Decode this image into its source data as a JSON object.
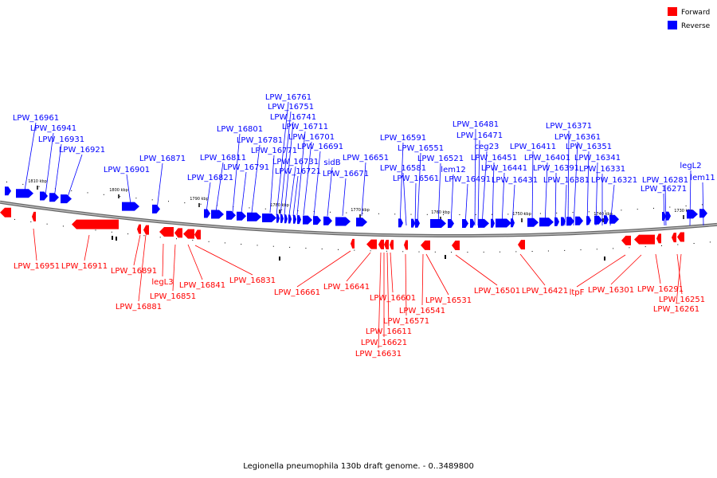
{
  "caption": "Legionella pneumophila 130b draft genome. - 0..3489800",
  "legend": [
    {
      "label": "Forward",
      "color": "#ff0000"
    },
    {
      "label": "Reverse",
      "color": "#0000ff"
    }
  ],
  "colors": {
    "forward": "#ff0000",
    "reverse": "#0000ff",
    "backbone": "#999999"
  },
  "ticks": [
    {
      "label": "1810 kbp"
    },
    {
      "label": "1800 kbp"
    },
    {
      "label": "1790 kbp"
    },
    {
      "label": "1780 kbp"
    },
    {
      "label": "1770 kbp"
    },
    {
      "label": "1760 kbp"
    },
    {
      "label": "1750 kbp"
    },
    {
      "label": "1740 kbp"
    },
    {
      "label": "1730 kbp"
    }
  ],
  "reverse_genes": [
    "LPW_16961",
    "LPW_16941",
    "LPW_16931",
    "LPW_16921",
    "LPW_16901",
    "LPW_16871",
    "LPW_16821",
    "LPW_16811",
    "LPW_16801",
    "LPW_16791",
    "LPW_16781",
    "LPW_16771",
    "LPW_16761",
    "LPW_16751",
    "LPW_16741",
    "LPW_16731",
    "LPW_16721",
    "LPW_16711",
    "LPW_16701",
    "LPW_16691",
    "sidB",
    "LPW_16671",
    "LPW_16651",
    "LPW_16591",
    "LPW_16581",
    "LPW_16561",
    "LPW_16551",
    "LPW_16521",
    "lem12",
    "LPW_16491",
    "LPW_16481",
    "LPW_16471",
    "ceg23",
    "LPW_16451",
    "LPW_16441",
    "LPW_16431",
    "LPW_16411",
    "LPW_16401",
    "LPW_16391",
    "LPW_16381",
    "LPW_16371",
    "LPW_16361",
    "LPW_16351",
    "LPW_16341",
    "LPW_16331",
    "LPW_16321",
    "LPW_16281",
    "LPW_16271",
    "legL2",
    "lem11"
  ],
  "forward_genes": [
    "LPW_16951",
    "LPW_16911",
    "LPW_16891",
    "LPW_16881",
    "legL3",
    "LPW_16851",
    "LPW_16841",
    "LPW_16831",
    "LPW_16661",
    "LPW_16641",
    "LPW_16631",
    "LPW_16621",
    "LPW_16611",
    "LPW_16601",
    "LPW_16571",
    "LPW_16541",
    "LPW_16531",
    "LPW_16501",
    "LPW_16421",
    "ltpF",
    "LPW_16301",
    "LPW_16291",
    "LPW_16251",
    "LPW_16261"
  ]
}
